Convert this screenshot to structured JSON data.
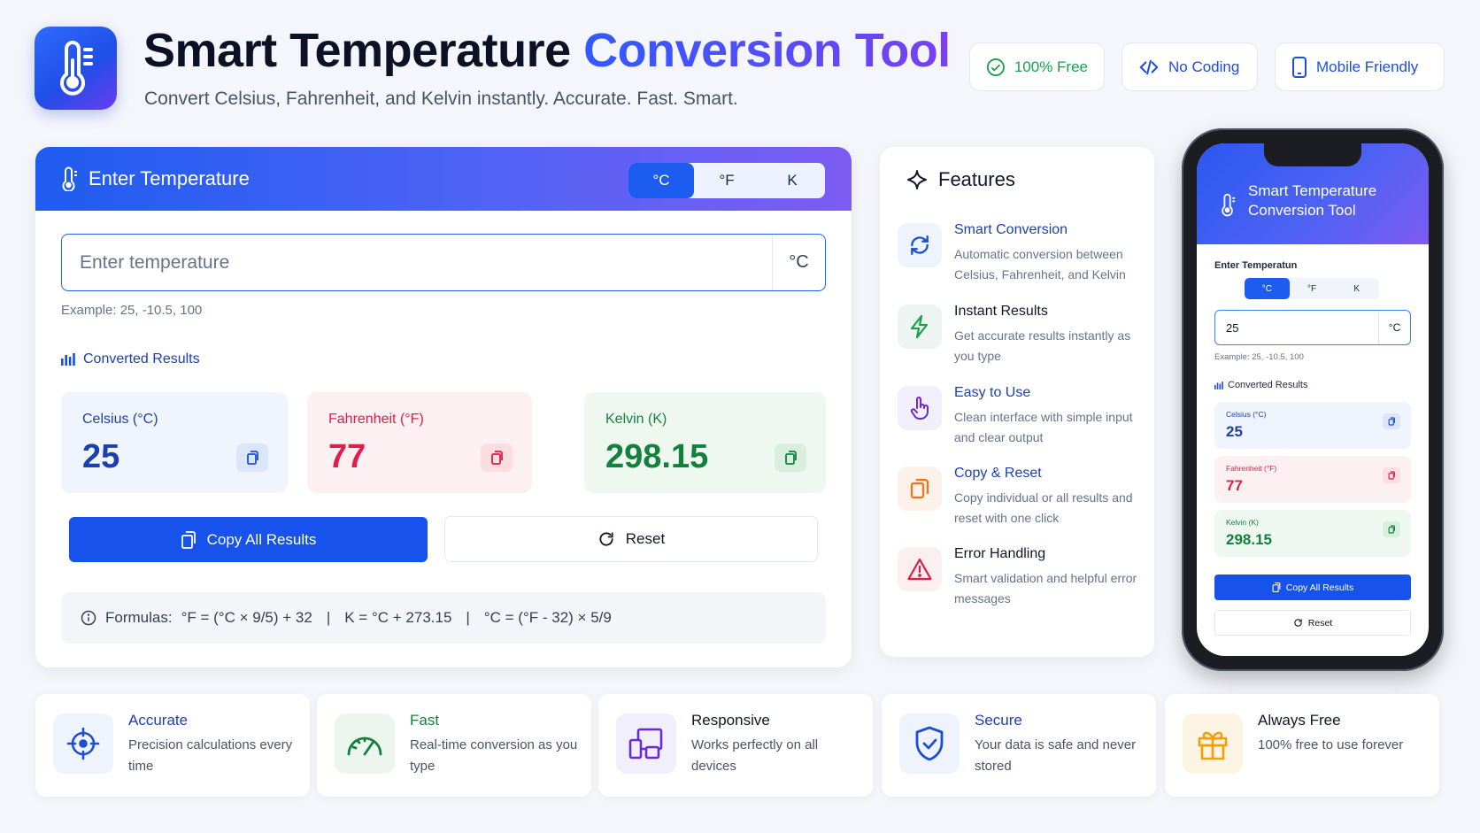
{
  "header": {
    "title_main": "Smart Temperature ",
    "title_accent": "Conversion Tool",
    "subtitle": "Convert Celsius, Fahrenheit, and Kelvin instantly. Accurate. Fast. Smart.",
    "badges": [
      {
        "label": "100% Free",
        "icon": "check-circle-icon",
        "color": "#16a34a"
      },
      {
        "label": "No Coding",
        "icon": "code-icon",
        "color": "#1d4ed8"
      },
      {
        "label": "Mobile Friendly",
        "icon": "smartphone-icon",
        "color": "#1d4ed8"
      }
    ]
  },
  "converter": {
    "heading": "Enter Temperature",
    "units": [
      "°C",
      "°F",
      "K"
    ],
    "selected_unit": "°C",
    "input_placeholder": "Enter temperature",
    "input_value": "",
    "input_unit": "°C",
    "example": "Example: 25, -10.5, 100",
    "results_title": "Converted Results",
    "results": [
      {
        "label": "Celsius (°C)",
        "value": "25",
        "color": "#1e40af",
        "bg": "#eff4fd",
        "copy_bg": "#dbe6fb"
      },
      {
        "label": "Fahrenheit (°F)",
        "value": "77",
        "color": "#e11d48",
        "bg": "#fdf0f2",
        "copy_bg": "#fbdde2"
      },
      {
        "label": "Kelvin (K)",
        "value": "298.15",
        "color": "#15803d",
        "bg": "#eef8f1",
        "copy_bg": "#d8efdf"
      }
    ],
    "copy_all_label": "Copy All Results",
    "reset_label": "Reset",
    "formula_label": "Formulas:",
    "formulas": [
      "°F = (°C × 9/5) + 32",
      "K = °C + 273.15",
      "°C = (°F - 32) × 5/9"
    ],
    "formula_separator": "|"
  },
  "features": {
    "heading": "Features",
    "items": [
      {
        "title": "Smart Conversion",
        "desc": "Automatic conversion between Celsius, Fahrenheit, and Kelvin",
        "icon": "refresh-icon",
        "color": "#1d4ed8",
        "bg": "#eef3fd"
      },
      {
        "title": "Instant Results",
        "desc": "Get accurate results instantly as you type",
        "icon": "lightning-icon",
        "color": "#16a34a",
        "bg": "#eef4f1"
      },
      {
        "title": "Easy to Use",
        "desc": "Clean interface with simple input and clear output",
        "icon": "pointer-hand-icon",
        "color": "#6d28d9",
        "bg": "#f1effc"
      },
      {
        "title": "Copy & Reset",
        "desc": "Copy individual or all results and reset with one click",
        "icon": "copy-icon",
        "color": "#f97316",
        "bg": "#fdf2e9"
      },
      {
        "title": "Error Handling",
        "desc": "Smart validation and helpful error messages",
        "icon": "warning-icon",
        "color": "#e11d48",
        "bg": "#fcefef"
      }
    ]
  },
  "phone": {
    "title": "Smart Temperature Conversion Tool",
    "input_label": "Enter Temperatun",
    "units": [
      "°C",
      "°F",
      "K"
    ],
    "input_value": "25",
    "input_unit": "°C",
    "example": "Example: 25, -10.5, 100",
    "results_title": "Converted Results",
    "results": [
      {
        "label": "Celsius (°C)",
        "value": "25"
      },
      {
        "label": "Fahrenheit (°F)",
        "value": "77"
      },
      {
        "label": "Kelvin (K)",
        "value": "298.15"
      }
    ],
    "copy_all_label": "Copy All Results",
    "reset_label": "Reset"
  },
  "benefits": [
    {
      "title": "Accurate",
      "desc": "Precision calculations every time",
      "icon": "crosshair-icon",
      "title_color": "#1e40af",
      "bg": "#eef3fd",
      "color": "#1d4ed8"
    },
    {
      "title": "Fast",
      "desc": "Real-time conversion as you type",
      "icon": "speedometer-icon",
      "title_color": "#15803d",
      "bg": "#ecf6ef",
      "color": "#15803d"
    },
    {
      "title": "Responsive",
      "desc": "Works perfectly on all devices",
      "icon": "devices-icon",
      "title_color": "#111827",
      "bg": "#f1effc",
      "color": "#6d28d9"
    },
    {
      "title": "Secure",
      "desc": "Your data is safe and never stored",
      "icon": "shield-check-icon",
      "title_color": "#1e40af",
      "bg": "#eef3fd",
      "color": "#1d4ed8"
    },
    {
      "title": "Always Free",
      "desc": "100% free to use forever",
      "icon": "gift-icon",
      "title_color": "#111827",
      "bg": "#fdf4e4",
      "color": "#f59e0b"
    }
  ]
}
